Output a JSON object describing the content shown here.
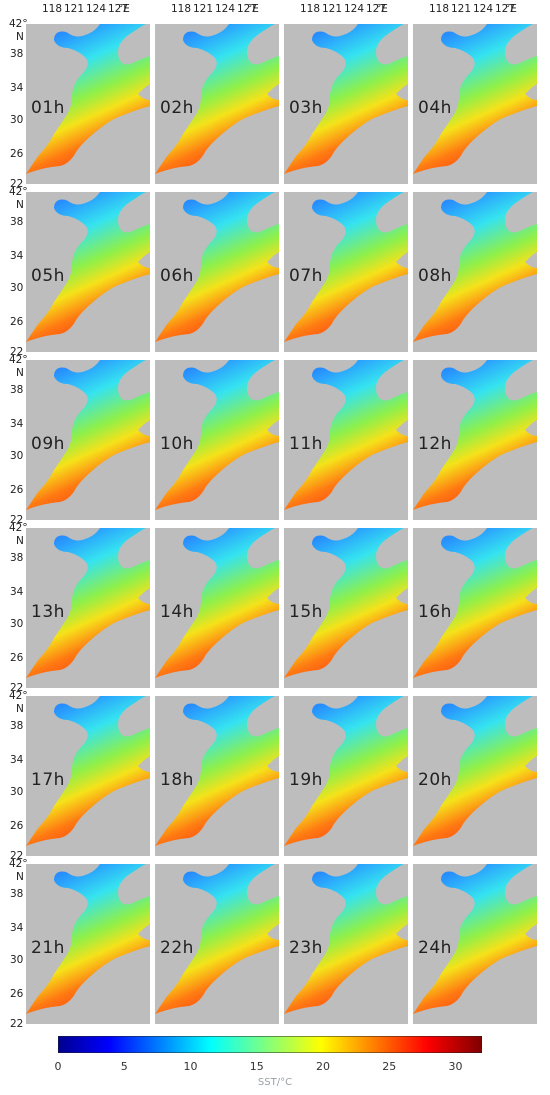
{
  "map": {
    "longitude_ticks": [
      "118",
      "121",
      "124",
      "127"
    ],
    "longitude_unit": "°E",
    "latitude_ticks": [
      "42°",
      "38",
      "34",
      "30",
      "26",
      "22"
    ],
    "latitude_unit": "N",
    "colors": {
      "land": "#bdbdbd",
      "panel_border": "#ffffff"
    }
  },
  "panels": [
    {
      "label": "01h"
    },
    {
      "label": "02h"
    },
    {
      "label": "03h"
    },
    {
      "label": "04h"
    },
    {
      "label": "05h"
    },
    {
      "label": "06h"
    },
    {
      "label": "07h"
    },
    {
      "label": "08h"
    },
    {
      "label": "09h"
    },
    {
      "label": "10h"
    },
    {
      "label": "11h"
    },
    {
      "label": "12h"
    },
    {
      "label": "13h"
    },
    {
      "label": "14h"
    },
    {
      "label": "15h"
    },
    {
      "label": "16h"
    },
    {
      "label": "17h"
    },
    {
      "label": "18h"
    },
    {
      "label": "19h"
    },
    {
      "label": "20h"
    },
    {
      "label": "21h"
    },
    {
      "label": "22h"
    },
    {
      "label": "23h"
    },
    {
      "label": "24h"
    }
  ],
  "colorbar": {
    "title": "SST/°C",
    "ticks": [
      "0",
      "5",
      "10",
      "15",
      "20",
      "25",
      "30"
    ],
    "range": [
      0,
      32
    ],
    "colormap": "jet"
  }
}
